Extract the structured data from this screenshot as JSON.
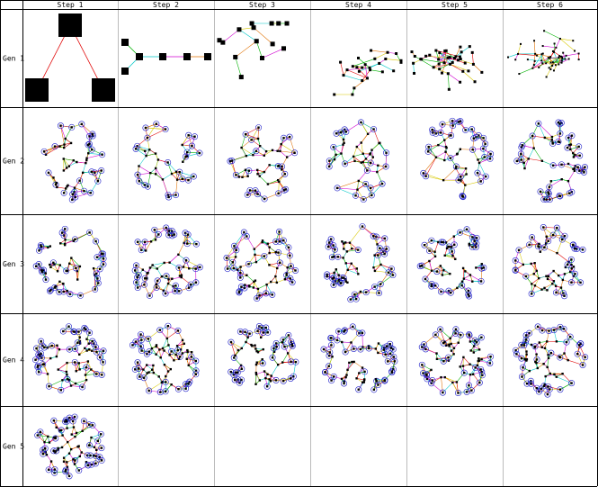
{
  "columns": [
    "Step 1",
    "Step 2",
    "Step 3",
    "Step 4",
    "Step 5",
    "Step 6"
  ],
  "rows": [
    "Gen 1",
    "Gen 2",
    "Gen 3",
    "Gen 4",
    "Gen 5"
  ],
  "cells": [
    {
      "gen": 1,
      "step": 1,
      "kind": "big",
      "nodes": 3,
      "seed": 1
    },
    {
      "gen": 1,
      "step": 2,
      "kind": "chain",
      "nodes": 6,
      "seed": 2
    },
    {
      "gen": 1,
      "step": 3,
      "kind": "scatter",
      "nodes": 14,
      "seed": 3
    },
    {
      "gen": 1,
      "step": 4,
      "kind": "tree",
      "nodes": 26,
      "seed": 4
    },
    {
      "gen": 1,
      "step": 5,
      "kind": "tree",
      "nodes": 40,
      "seed": 5
    },
    {
      "gen": 1,
      "step": 6,
      "kind": "tree",
      "nodes": 52,
      "seed": 6
    },
    {
      "gen": 2,
      "step": 1,
      "kind": "net",
      "nodes": 50,
      "seed": 7
    },
    {
      "gen": 2,
      "step": 2,
      "kind": "net",
      "nodes": 40,
      "seed": 8
    },
    {
      "gen": 2,
      "step": 3,
      "kind": "net",
      "nodes": 48,
      "seed": 9
    },
    {
      "gen": 2,
      "step": 4,
      "kind": "net",
      "nodes": 46,
      "seed": 10
    },
    {
      "gen": 2,
      "step": 5,
      "kind": "net",
      "nodes": 55,
      "seed": 11
    },
    {
      "gen": 2,
      "step": 6,
      "kind": "net",
      "nodes": 60,
      "seed": 12
    },
    {
      "gen": 3,
      "step": 1,
      "kind": "net",
      "nodes": 62,
      "seed": 13
    },
    {
      "gen": 3,
      "step": 2,
      "kind": "net",
      "nodes": 64,
      "seed": 14
    },
    {
      "gen": 3,
      "step": 3,
      "kind": "net",
      "nodes": 62,
      "seed": 15
    },
    {
      "gen": 3,
      "step": 4,
      "kind": "net",
      "nodes": 66,
      "seed": 16
    },
    {
      "gen": 3,
      "step": 5,
      "kind": "net",
      "nodes": 62,
      "seed": 17
    },
    {
      "gen": 3,
      "step": 6,
      "kind": "net",
      "nodes": 64,
      "seed": 18
    },
    {
      "gen": 4,
      "step": 1,
      "kind": "net",
      "nodes": 72,
      "seed": 19
    },
    {
      "gen": 4,
      "step": 2,
      "kind": "net",
      "nodes": 72,
      "seed": 20
    },
    {
      "gen": 4,
      "step": 3,
      "kind": "net",
      "nodes": 70,
      "seed": 21
    },
    {
      "gen": 4,
      "step": 4,
      "kind": "net",
      "nodes": 68,
      "seed": 22
    },
    {
      "gen": 4,
      "step": 5,
      "kind": "net",
      "nodes": 70,
      "seed": 23
    },
    {
      "gen": 4,
      "step": 6,
      "kind": "net",
      "nodes": 72,
      "seed": 24
    },
    {
      "gen": 5,
      "step": 1,
      "kind": "net",
      "nodes": 80,
      "seed": 25
    }
  ],
  "palette": {
    "grid": "#000000",
    "node": "#000000",
    "ring": "#1e1ec8",
    "edges": [
      "#e00000",
      "#00b000",
      "#00c8c8",
      "#d000d0",
      "#e07000",
      "#d8c800"
    ]
  }
}
